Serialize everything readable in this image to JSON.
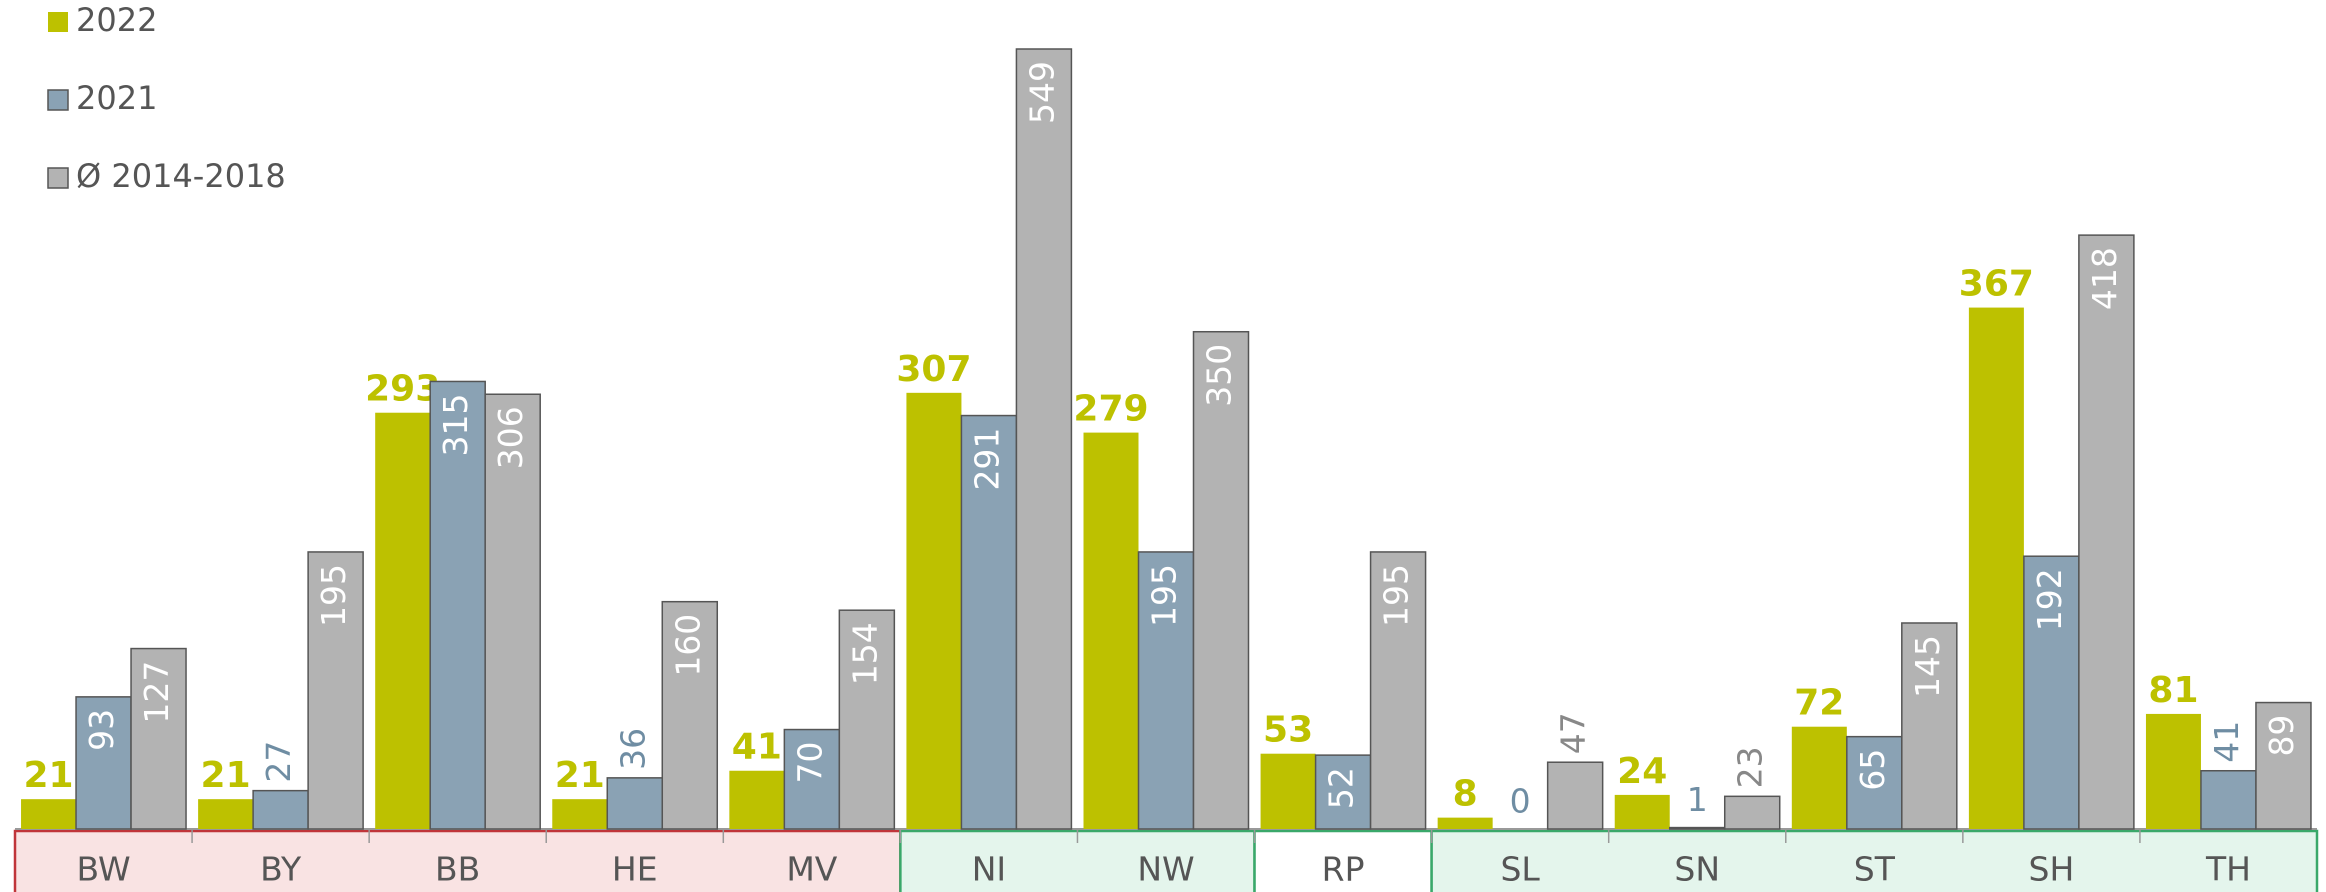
{
  "chart_data": {
    "type": "bar",
    "categories": [
      "BW",
      "BY",
      "BB",
      "HE",
      "MV",
      "NI",
      "NW",
      "RP",
      "SL",
      "SN",
      "ST",
      "SH",
      "TH"
    ],
    "series": [
      {
        "name": "2022",
        "color": "#bdc100",
        "values": [
          21,
          21,
          293,
          21,
          41,
          307,
          279,
          53,
          8,
          24,
          72,
          367,
          81
        ]
      },
      {
        "name": "2021",
        "color": "#8aa2b4",
        "values": [
          93,
          27,
          315,
          36,
          70,
          291,
          195,
          52,
          0,
          1,
          65,
          192,
          41
        ]
      },
      {
        "name": "Ø 2014-2018",
        "color": "#b3b3b3",
        "values": [
          127,
          195,
          306,
          160,
          154,
          549,
          350,
          195,
          47,
          23,
          145,
          418,
          89
        ]
      }
    ],
    "legend": "top-left"
  }
}
